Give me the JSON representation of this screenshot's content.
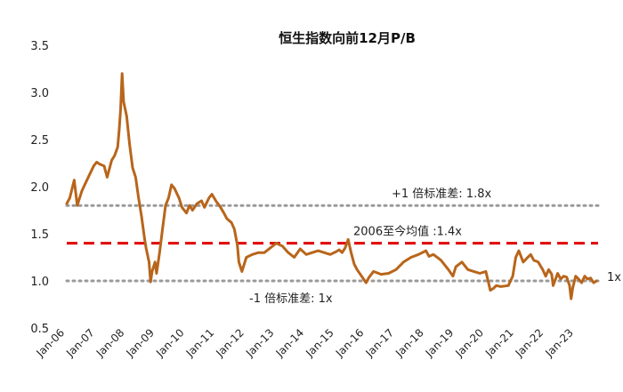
{
  "chart_data": {
    "type": "line",
    "title": "恒生指数向前12月P/B",
    "ylim": [
      0.5,
      3.5
    ],
    "yticks": [
      "0.5",
      "1.0",
      "1.5",
      "2.0",
      "2.5",
      "3.0",
      "3.5"
    ],
    "xlim": [
      2006.0,
      2023.75
    ],
    "xticks": [
      {
        "label": "Jan-06",
        "x": 2006
      },
      {
        "label": "Jan-07",
        "x": 2007
      },
      {
        "label": "Jan-08",
        "x": 2008
      },
      {
        "label": "Jan-09",
        "x": 2009
      },
      {
        "label": "Jan-10",
        "x": 2010
      },
      {
        "label": "Jan-11",
        "x": 2011
      },
      {
        "label": "Jan-12",
        "x": 2012
      },
      {
        "label": "Jan-13",
        "x": 2013
      },
      {
        "label": "Jan-14",
        "x": 2014
      },
      {
        "label": "Jan-15",
        "x": 2015
      },
      {
        "label": "Jan-16",
        "x": 2016
      },
      {
        "label": "Jan-17",
        "x": 2017
      },
      {
        "label": "Jan-18",
        "x": 2018
      },
      {
        "label": "Jan-19",
        "x": 2019
      },
      {
        "label": "Jan-20",
        "x": 2020
      },
      {
        "label": "Jan-21",
        "x": 2021
      },
      {
        "label": "Jan-22",
        "x": 2022
      },
      {
        "label": "Jan-23",
        "x": 2023
      }
    ],
    "series": [
      {
        "name": "恒生指数向前12月P/B",
        "color": "#B8651B",
        "x": [
          2006.0,
          2006.1,
          2006.25,
          2006.35,
          2006.5,
          2006.6,
          2006.75,
          2006.9,
          2007.0,
          2007.1,
          2007.25,
          2007.35,
          2007.5,
          2007.6,
          2007.7,
          2007.75,
          2007.8,
          2007.85,
          2007.9,
          2008.0,
          2008.1,
          2008.2,
          2008.3,
          2008.4,
          2008.5,
          2008.6,
          2008.65,
          2008.75,
          2008.8,
          2008.85,
          2008.95,
          2009.0,
          2009.1,
          2009.2,
          2009.3,
          2009.4,
          2009.5,
          2009.6,
          2009.75,
          2009.85,
          2010.0,
          2010.1,
          2010.2,
          2010.35,
          2010.5,
          2010.6,
          2010.75,
          2010.85,
          2011.0,
          2011.1,
          2011.25,
          2011.35,
          2011.5,
          2011.6,
          2011.7,
          2011.75,
          2011.85,
          2012.0,
          2012.2,
          2012.4,
          2012.6,
          2012.8,
          2013.0,
          2013.2,
          2013.4,
          2013.6,
          2013.8,
          2014.0,
          2014.2,
          2014.4,
          2014.6,
          2014.8,
          2015.0,
          2015.1,
          2015.2,
          2015.3,
          2015.4,
          2015.5,
          2015.6,
          2015.7,
          2015.85,
          2016.0,
          2016.1,
          2016.25,
          2016.5,
          2016.75,
          2017.0,
          2017.25,
          2017.5,
          2017.75,
          2018.0,
          2018.1,
          2018.25,
          2018.5,
          2018.75,
          2018.9,
          2019.0,
          2019.2,
          2019.4,
          2019.6,
          2019.8,
          2020.0,
          2020.15,
          2020.25,
          2020.35,
          2020.5,
          2020.75,
          2020.9,
          2021.0,
          2021.1,
          2021.25,
          2021.4,
          2021.5,
          2021.6,
          2021.75,
          2021.9,
          2022.0,
          2022.1,
          2022.2,
          2022.25,
          2022.4,
          2022.5,
          2022.6,
          2022.7,
          2022.8,
          2022.85,
          2022.9,
          2023.0,
          2023.1,
          2023.2,
          2023.3,
          2023.4,
          2023.5,
          2023.6,
          2023.7
        ],
        "values": [
          1.82,
          1.88,
          2.07,
          1.8,
          1.95,
          2.02,
          2.12,
          2.22,
          2.26,
          2.24,
          2.22,
          2.1,
          2.28,
          2.33,
          2.42,
          2.6,
          2.82,
          3.2,
          2.9,
          2.75,
          2.45,
          2.2,
          2.1,
          1.88,
          1.68,
          1.45,
          1.35,
          1.2,
          0.99,
          1.1,
          1.2,
          1.08,
          1.3,
          1.55,
          1.8,
          1.88,
          2.02,
          1.98,
          1.88,
          1.78,
          1.72,
          1.8,
          1.75,
          1.82,
          1.85,
          1.78,
          1.88,
          1.92,
          1.84,
          1.8,
          1.72,
          1.66,
          1.62,
          1.55,
          1.38,
          1.2,
          1.1,
          1.25,
          1.28,
          1.3,
          1.3,
          1.35,
          1.4,
          1.37,
          1.3,
          1.25,
          1.34,
          1.28,
          1.3,
          1.32,
          1.3,
          1.28,
          1.31,
          1.33,
          1.3,
          1.35,
          1.44,
          1.3,
          1.18,
          1.12,
          1.05,
          0.98,
          1.04,
          1.1,
          1.07,
          1.08,
          1.12,
          1.2,
          1.25,
          1.28,
          1.32,
          1.26,
          1.28,
          1.22,
          1.12,
          1.05,
          1.15,
          1.2,
          1.12,
          1.1,
          1.08,
          1.1,
          0.9,
          0.92,
          0.95,
          0.94,
          0.95,
          1.05,
          1.25,
          1.32,
          1.2,
          1.25,
          1.28,
          1.22,
          1.2,
          1.12,
          1.05,
          1.12,
          1.07,
          0.95,
          1.08,
          1.02,
          1.05,
          1.04,
          0.95,
          0.81,
          0.92,
          1.05,
          1.02,
          0.98,
          1.05,
          1.02,
          1.03,
          0.98,
          1.0
        ]
      }
    ],
    "reference_lines": [
      {
        "label": "+1 倍标准差: 1.8x",
        "value": 1.8,
        "style": "dotted",
        "color": "#9a9a9a",
        "label_position": "above-right"
      },
      {
        "label": "2006至今均值 :1.4x",
        "value": 1.4,
        "style": "dashed",
        "color": "#E00000",
        "label_position": "above-right"
      },
      {
        "label": "-1 倍标准差: 1x",
        "value": 1.0,
        "style": "dotted",
        "color": "#9a9a9a",
        "label_position": "below-center"
      }
    ],
    "end_label": "1x",
    "grid": false,
    "legend": "none"
  }
}
